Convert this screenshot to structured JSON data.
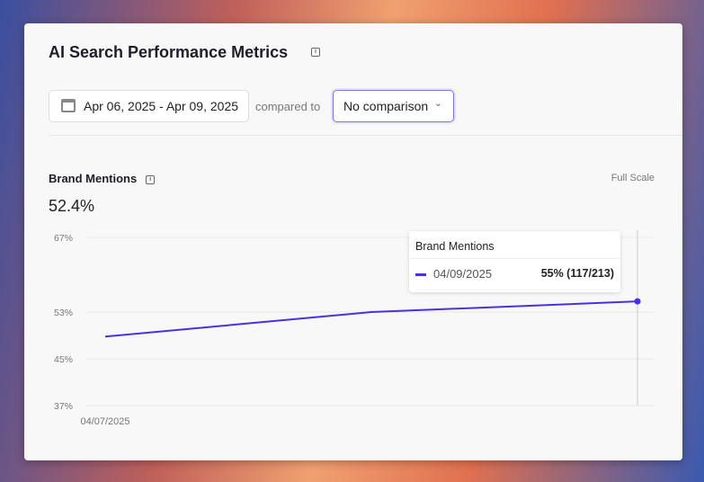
{
  "header": {
    "title": "AI Search Performance Metrics",
    "date_range": "Apr 06, 2025 - Apr 09, 2025",
    "compared_to_label": "compared to",
    "comparison_select": "No comparison"
  },
  "metric": {
    "title": "Brand Mentions",
    "value": "52.4%",
    "scale_label": "Full Scale"
  },
  "tooltip": {
    "title": "Brand Mentions",
    "date": "04/09/2025",
    "value": "55% (117/213)"
  },
  "colors": {
    "series": "#4b30e0",
    "accent": "#7b74f0"
  },
  "chart_data": {
    "type": "line",
    "title": "Brand Mentions",
    "categories": [
      "04/07/2025",
      "",
      "04/09/2025"
    ],
    "x_tick_labels": [
      "04/07/2025"
    ],
    "series": [
      {
        "name": "Brand Mentions",
        "values": [
          48.8,
          53.0,
          55.0
        ]
      }
    ],
    "y_ticks": [
      "67%",
      "53%",
      "45%",
      "37%"
    ],
    "y_tick_values": [
      67,
      53,
      45,
      37
    ],
    "ylim": [
      37,
      67
    ],
    "grid": true,
    "highlighted_index": 2
  }
}
